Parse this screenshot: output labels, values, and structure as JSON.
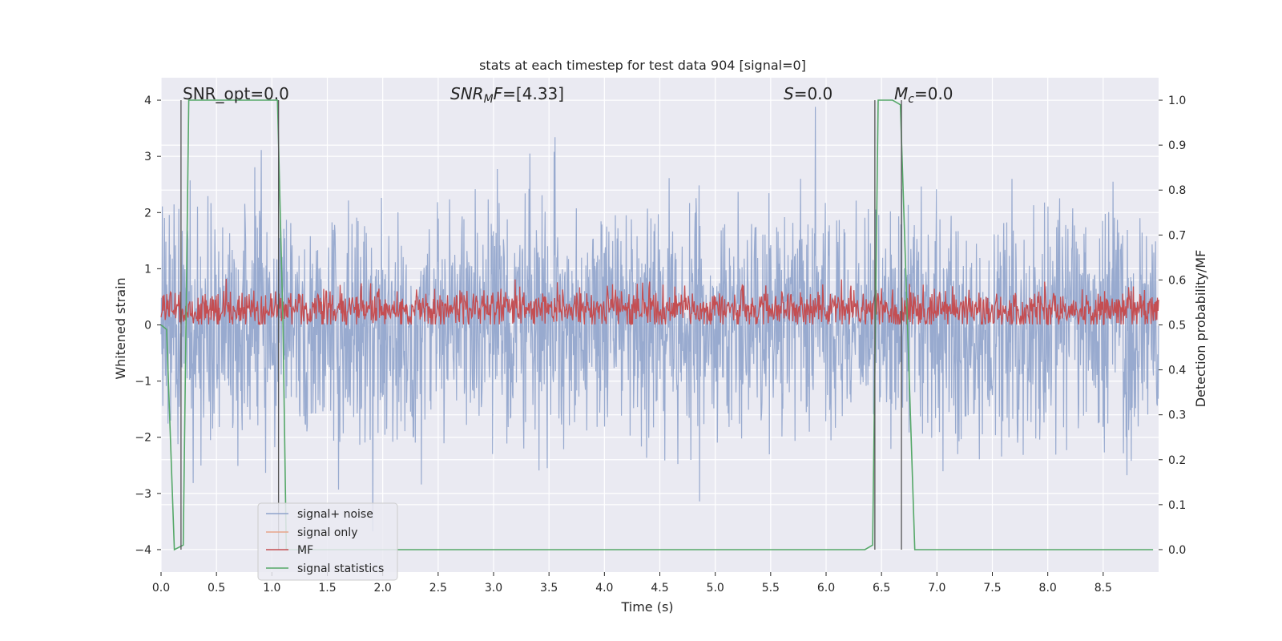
{
  "chart_data": {
    "type": "line",
    "title": "stats at each timestep for test data 904 [signal=0]",
    "xlabel": "Time (s)",
    "ylabel": "Whitened strain",
    "y2label": "Detection probability/MF",
    "xlim": [
      0.0,
      9.0
    ],
    "ylim": [
      -4.4,
      4.4
    ],
    "y2lim": [
      -0.05,
      1.05
    ],
    "x_ticks": [
      "0.0",
      "0.5",
      "1.0",
      "1.5",
      "2.0",
      "2.5",
      "3.0",
      "3.5",
      "4.0",
      "4.5",
      "5.0",
      "5.5",
      "6.0",
      "6.5",
      "7.0",
      "7.5",
      "8.0",
      "8.5"
    ],
    "y_ticks": [
      "4",
      "3",
      "2",
      "1",
      "0",
      "−1",
      "−2",
      "−3",
      "−4"
    ],
    "y2_ticks": [
      "1.0",
      "0.9",
      "0.8",
      "0.7",
      "0.6",
      "0.5",
      "0.4",
      "0.3",
      "0.2",
      "0.1",
      "0.0"
    ],
    "grid": true,
    "legend_position": "lower-left",
    "annotations": [
      "SNR_opt=0.0",
      "SNR_MF=[4.33]",
      "S=0.0",
      "M_c=0.0"
    ],
    "series": [
      {
        "name": "signal+ noise",
        "color": "#8fa3cb",
        "axis": "left",
        "description_values": "whitened noise spanning approximately -4 to 4"
      },
      {
        "name": "signal only",
        "color": "#e8a58a",
        "axis": "left",
        "values": []
      },
      {
        "name": "MF",
        "color": "#c44e52",
        "axis": "right",
        "approx_range": [
          0.5,
          0.6
        ]
      },
      {
        "name": "signal statistics",
        "color": "#55a868",
        "axis": "right",
        "x": [
          0.0,
          0.05,
          0.12,
          0.2,
          0.25,
          1.05,
          1.1,
          1.13,
          1.15,
          6.35,
          6.42,
          6.47,
          6.5,
          6.6,
          6.67,
          6.8,
          8.95
        ],
        "y": [
          0.5,
          0.49,
          0.0,
          0.01,
          1.0,
          1.0,
          0.5,
          0.0,
          0.0,
          0.0,
          0.01,
          1.0,
          1.0,
          1.0,
          0.99,
          0.0,
          0.0
        ]
      }
    ],
    "vertical_lines_x": [
      0.18,
      1.06,
      6.44,
      6.68
    ]
  }
}
